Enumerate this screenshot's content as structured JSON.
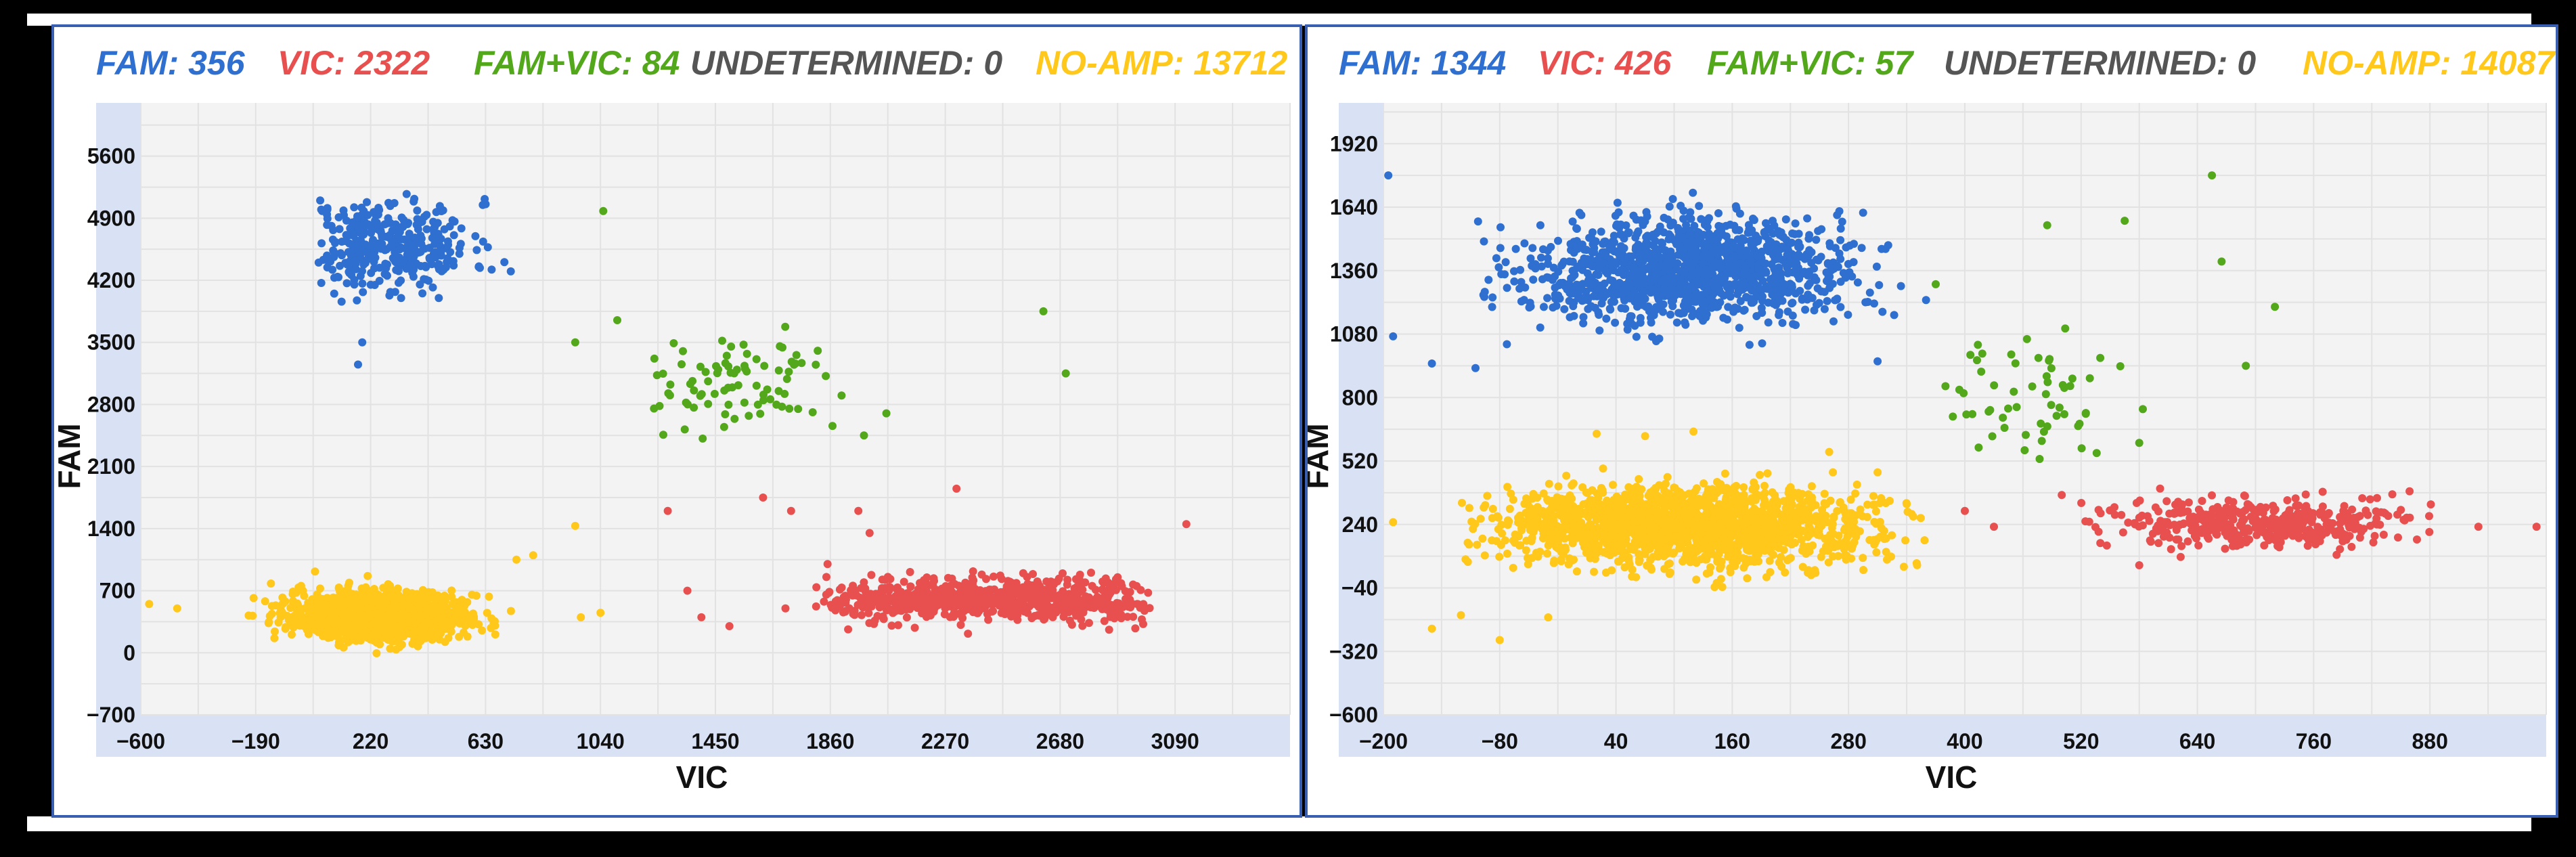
{
  "chart_data": [
    {
      "type": "scatter",
      "xlabel": "VIC",
      "ylabel": "FAM",
      "xlim": [
        -600,
        3500
      ],
      "ylim": [
        -700,
        6200
      ],
      "x_ticks": [
        -600,
        -190,
        220,
        630,
        1040,
        1450,
        1860,
        2270,
        2680,
        3090
      ],
      "y_ticks": [
        -700,
        0,
        700,
        1400,
        2100,
        2800,
        3500,
        4200,
        4900,
        5600
      ],
      "grid": true,
      "legend": [
        {
          "label": "FAM: 356",
          "color": "#2f6fd0"
        },
        {
          "label": "VIC: 2322",
          "color": "#e85050"
        },
        {
          "label": "FAM+VIC: 84",
          "color": "#52a81a"
        },
        {
          "label": "UNDETERMINED: 0",
          "color": "#555555"
        },
        {
          "label": "NO-AMP: 13712",
          "color": "#ffc81a"
        }
      ],
      "clusters": [
        {
          "name": "FAM",
          "color": "#2f6fd0",
          "n": 356,
          "cx": 280,
          "cy": 4600,
          "sx": 150,
          "sy": 260,
          "seed": 11,
          "xr": [
            30,
            780
          ],
          "yr": [
            3900,
            5200
          ]
        },
        {
          "name": "VIC",
          "color": "#e85050",
          "n": 700,
          "cx": 2420,
          "cy": 600,
          "sx": 330,
          "sy": 120,
          "seed": 22,
          "xr": [
            1790,
            3000
          ],
          "yr": [
            200,
            1000
          ]
        },
        {
          "name": "FAM+VIC",
          "color": "#52a81a",
          "n": 84,
          "cx": 1520,
          "cy": 3000,
          "sx": 150,
          "sy": 260,
          "seed": 33,
          "xr": [
            1200,
            2060
          ],
          "yr": [
            2300,
            3700
          ]
        },
        {
          "name": "NO-AMP",
          "color": "#ffc81a",
          "n": 1400,
          "cx": 250,
          "cy": 420,
          "sx": 155,
          "sy": 130,
          "seed": 44,
          "xr": [
            -260,
            780
          ],
          "yr": [
            -20,
            950
          ]
        }
      ],
      "outliers": [
        {
          "series": "FAM",
          "x": 190,
          "y": 3500
        },
        {
          "series": "FAM",
          "x": 175,
          "y": 3250
        },
        {
          "series": "FAM",
          "x": 40,
          "y": 5100
        },
        {
          "series": "FAM",
          "x": 720,
          "y": 4300
        },
        {
          "series": "FAM",
          "x": 620,
          "y": 5050
        },
        {
          "series": "FAM+VIC",
          "x": 1050,
          "y": 4980
        },
        {
          "series": "FAM+VIC",
          "x": 2620,
          "y": 3850
        },
        {
          "series": "FAM+VIC",
          "x": 2700,
          "y": 3150
        },
        {
          "series": "FAM+VIC",
          "x": 950,
          "y": 3500
        },
        {
          "series": "FAM+VIC",
          "x": 1100,
          "y": 3750
        },
        {
          "series": "FAM+VIC",
          "x": 1900,
          "y": 2900
        },
        {
          "series": "FAM+VIC",
          "x": 2060,
          "y": 2700
        },
        {
          "series": "FAM+VIC",
          "x": 1980,
          "y": 2450
        },
        {
          "series": "VIC",
          "x": 1280,
          "y": 1600
        },
        {
          "series": "VIC",
          "x": 1620,
          "y": 1750
        },
        {
          "series": "VIC",
          "x": 1720,
          "y": 1600
        },
        {
          "series": "VIC",
          "x": 1960,
          "y": 1600
        },
        {
          "series": "VIC",
          "x": 2310,
          "y": 1850
        },
        {
          "series": "VIC",
          "x": 3130,
          "y": 1450
        },
        {
          "series": "VIC",
          "x": 1400,
          "y": 400
        },
        {
          "series": "VIC",
          "x": 1350,
          "y": 700
        },
        {
          "series": "VIC",
          "x": 1500,
          "y": 300
        },
        {
          "series": "VIC",
          "x": 1700,
          "y": 500
        },
        {
          "series": "VIC",
          "x": 2000,
          "y": 1350
        },
        {
          "series": "VIC",
          "x": 1850,
          "y": 1000
        },
        {
          "series": "VIC",
          "x": 2900,
          "y": 750
        },
        {
          "series": "NO-AMP",
          "x": -570,
          "y": 550
        },
        {
          "series": "NO-AMP",
          "x": -470,
          "y": 500
        },
        {
          "series": "NO-AMP",
          "x": 1040,
          "y": 450
        },
        {
          "series": "NO-AMP",
          "x": 950,
          "y": 1430
        },
        {
          "series": "NO-AMP",
          "x": 970,
          "y": 400
        },
        {
          "series": "NO-AMP",
          "x": 800,
          "y": 1100
        },
        {
          "series": "NO-AMP",
          "x": 740,
          "y": 1050
        }
      ]
    },
    {
      "type": "scatter",
      "xlabel": "VIC",
      "ylabel": "FAM",
      "xlim": [
        -200,
        1000
      ],
      "ylim": [
        -600,
        2100
      ],
      "x_ticks": [
        -200,
        -80,
        40,
        160,
        280,
        400,
        520,
        640,
        760,
        880
      ],
      "y_ticks": [
        -600,
        -320,
        -40,
        240,
        520,
        800,
        1080,
        1360,
        1640,
        1920
      ],
      "grid": true,
      "legend": [
        {
          "label": "FAM: 1344",
          "color": "#2f6fd0"
        },
        {
          "label": "VIC: 426",
          "color": "#e85050"
        },
        {
          "label": "FAM+VIC: 57",
          "color": "#52a81a"
        },
        {
          "label": "UNDETERMINED: 0",
          "color": "#555555"
        },
        {
          "label": "NO-AMP: 14087",
          "color": "#ffc81a"
        }
      ],
      "clusters": [
        {
          "name": "FAM",
          "color": "#2f6fd0",
          "n": 1344,
          "cx": 115,
          "cy": 1360,
          "sx": 80,
          "sy": 110,
          "seed": 55,
          "xr": [
            -120,
            340
          ],
          "yr": [
            1000,
            1720
          ]
        },
        {
          "name": "VIC",
          "color": "#e85050",
          "n": 426,
          "cx": 700,
          "cy": 240,
          "sx": 75,
          "sy": 55,
          "seed": 66,
          "xr": [
            520,
            900
          ],
          "yr": [
            80,
            400
          ]
        },
        {
          "name": "FAM+VIC",
          "color": "#52a81a",
          "n": 57,
          "cx": 470,
          "cy": 800,
          "sx": 55,
          "sy": 150,
          "seed": 77,
          "xr": [
            370,
            600
          ],
          "yr": [
            520,
            1300
          ]
        },
        {
          "name": "NO-AMP",
          "color": "#ffc81a",
          "n": 1800,
          "cx": 110,
          "cy": 230,
          "sx": 95,
          "sy": 85,
          "seed": 88,
          "xr": [
            -120,
            360
          ],
          "yr": [
            -80,
            600
          ]
        }
      ],
      "outliers": [
        {
          "series": "FAM",
          "x": -195,
          "y": 1780
        },
        {
          "series": "FAM",
          "x": -150,
          "y": 950
        },
        {
          "series": "FAM",
          "x": -105,
          "y": 930
        },
        {
          "series": "FAM",
          "x": -190,
          "y": 1070
        },
        {
          "series": "FAM",
          "x": 360,
          "y": 1230
        },
        {
          "series": "FAM",
          "x": 310,
          "y": 960
        },
        {
          "series": "FAM+VIC",
          "x": 655,
          "y": 1780
        },
        {
          "series": "FAM+VIC",
          "x": 565,
          "y": 1580
        },
        {
          "series": "FAM+VIC",
          "x": 485,
          "y": 1560
        },
        {
          "series": "FAM+VIC",
          "x": 665,
          "y": 1400
        },
        {
          "series": "FAM+VIC",
          "x": 720,
          "y": 1200
        },
        {
          "series": "FAM+VIC",
          "x": 690,
          "y": 940
        },
        {
          "series": "FAM+VIC",
          "x": 580,
          "y": 600
        },
        {
          "series": "FAM+VIC",
          "x": 370,
          "y": 1300
        },
        {
          "series": "FAM+VIC",
          "x": 380,
          "y": 850
        },
        {
          "series": "VIC",
          "x": 990,
          "y": 230
        },
        {
          "series": "VIC",
          "x": 930,
          "y": 230
        },
        {
          "series": "VIC",
          "x": 400,
          "y": 300
        },
        {
          "series": "VIC",
          "x": 430,
          "y": 230
        },
        {
          "series": "VIC",
          "x": 500,
          "y": 370
        },
        {
          "series": "VIC",
          "x": 580,
          "y": 60
        },
        {
          "series": "NO-AMP",
          "x": -120,
          "y": -160
        },
        {
          "series": "NO-AMP",
          "x": -80,
          "y": -270
        },
        {
          "series": "NO-AMP",
          "x": -150,
          "y": -220
        },
        {
          "series": "NO-AMP",
          "x": -30,
          "y": -170
        },
        {
          "series": "NO-AMP",
          "x": 20,
          "y": 640
        },
        {
          "series": "NO-AMP",
          "x": 70,
          "y": 630
        },
        {
          "series": "NO-AMP",
          "x": 120,
          "y": 650
        },
        {
          "series": "NO-AMP",
          "x": 260,
          "y": 560
        },
        {
          "series": "NO-AMP",
          "x": 310,
          "y": 470
        },
        {
          "series": "NO-AMP",
          "x": -190,
          "y": 250
        },
        {
          "series": "NO-AMP",
          "x": 340,
          "y": 330
        }
      ]
    }
  ]
}
